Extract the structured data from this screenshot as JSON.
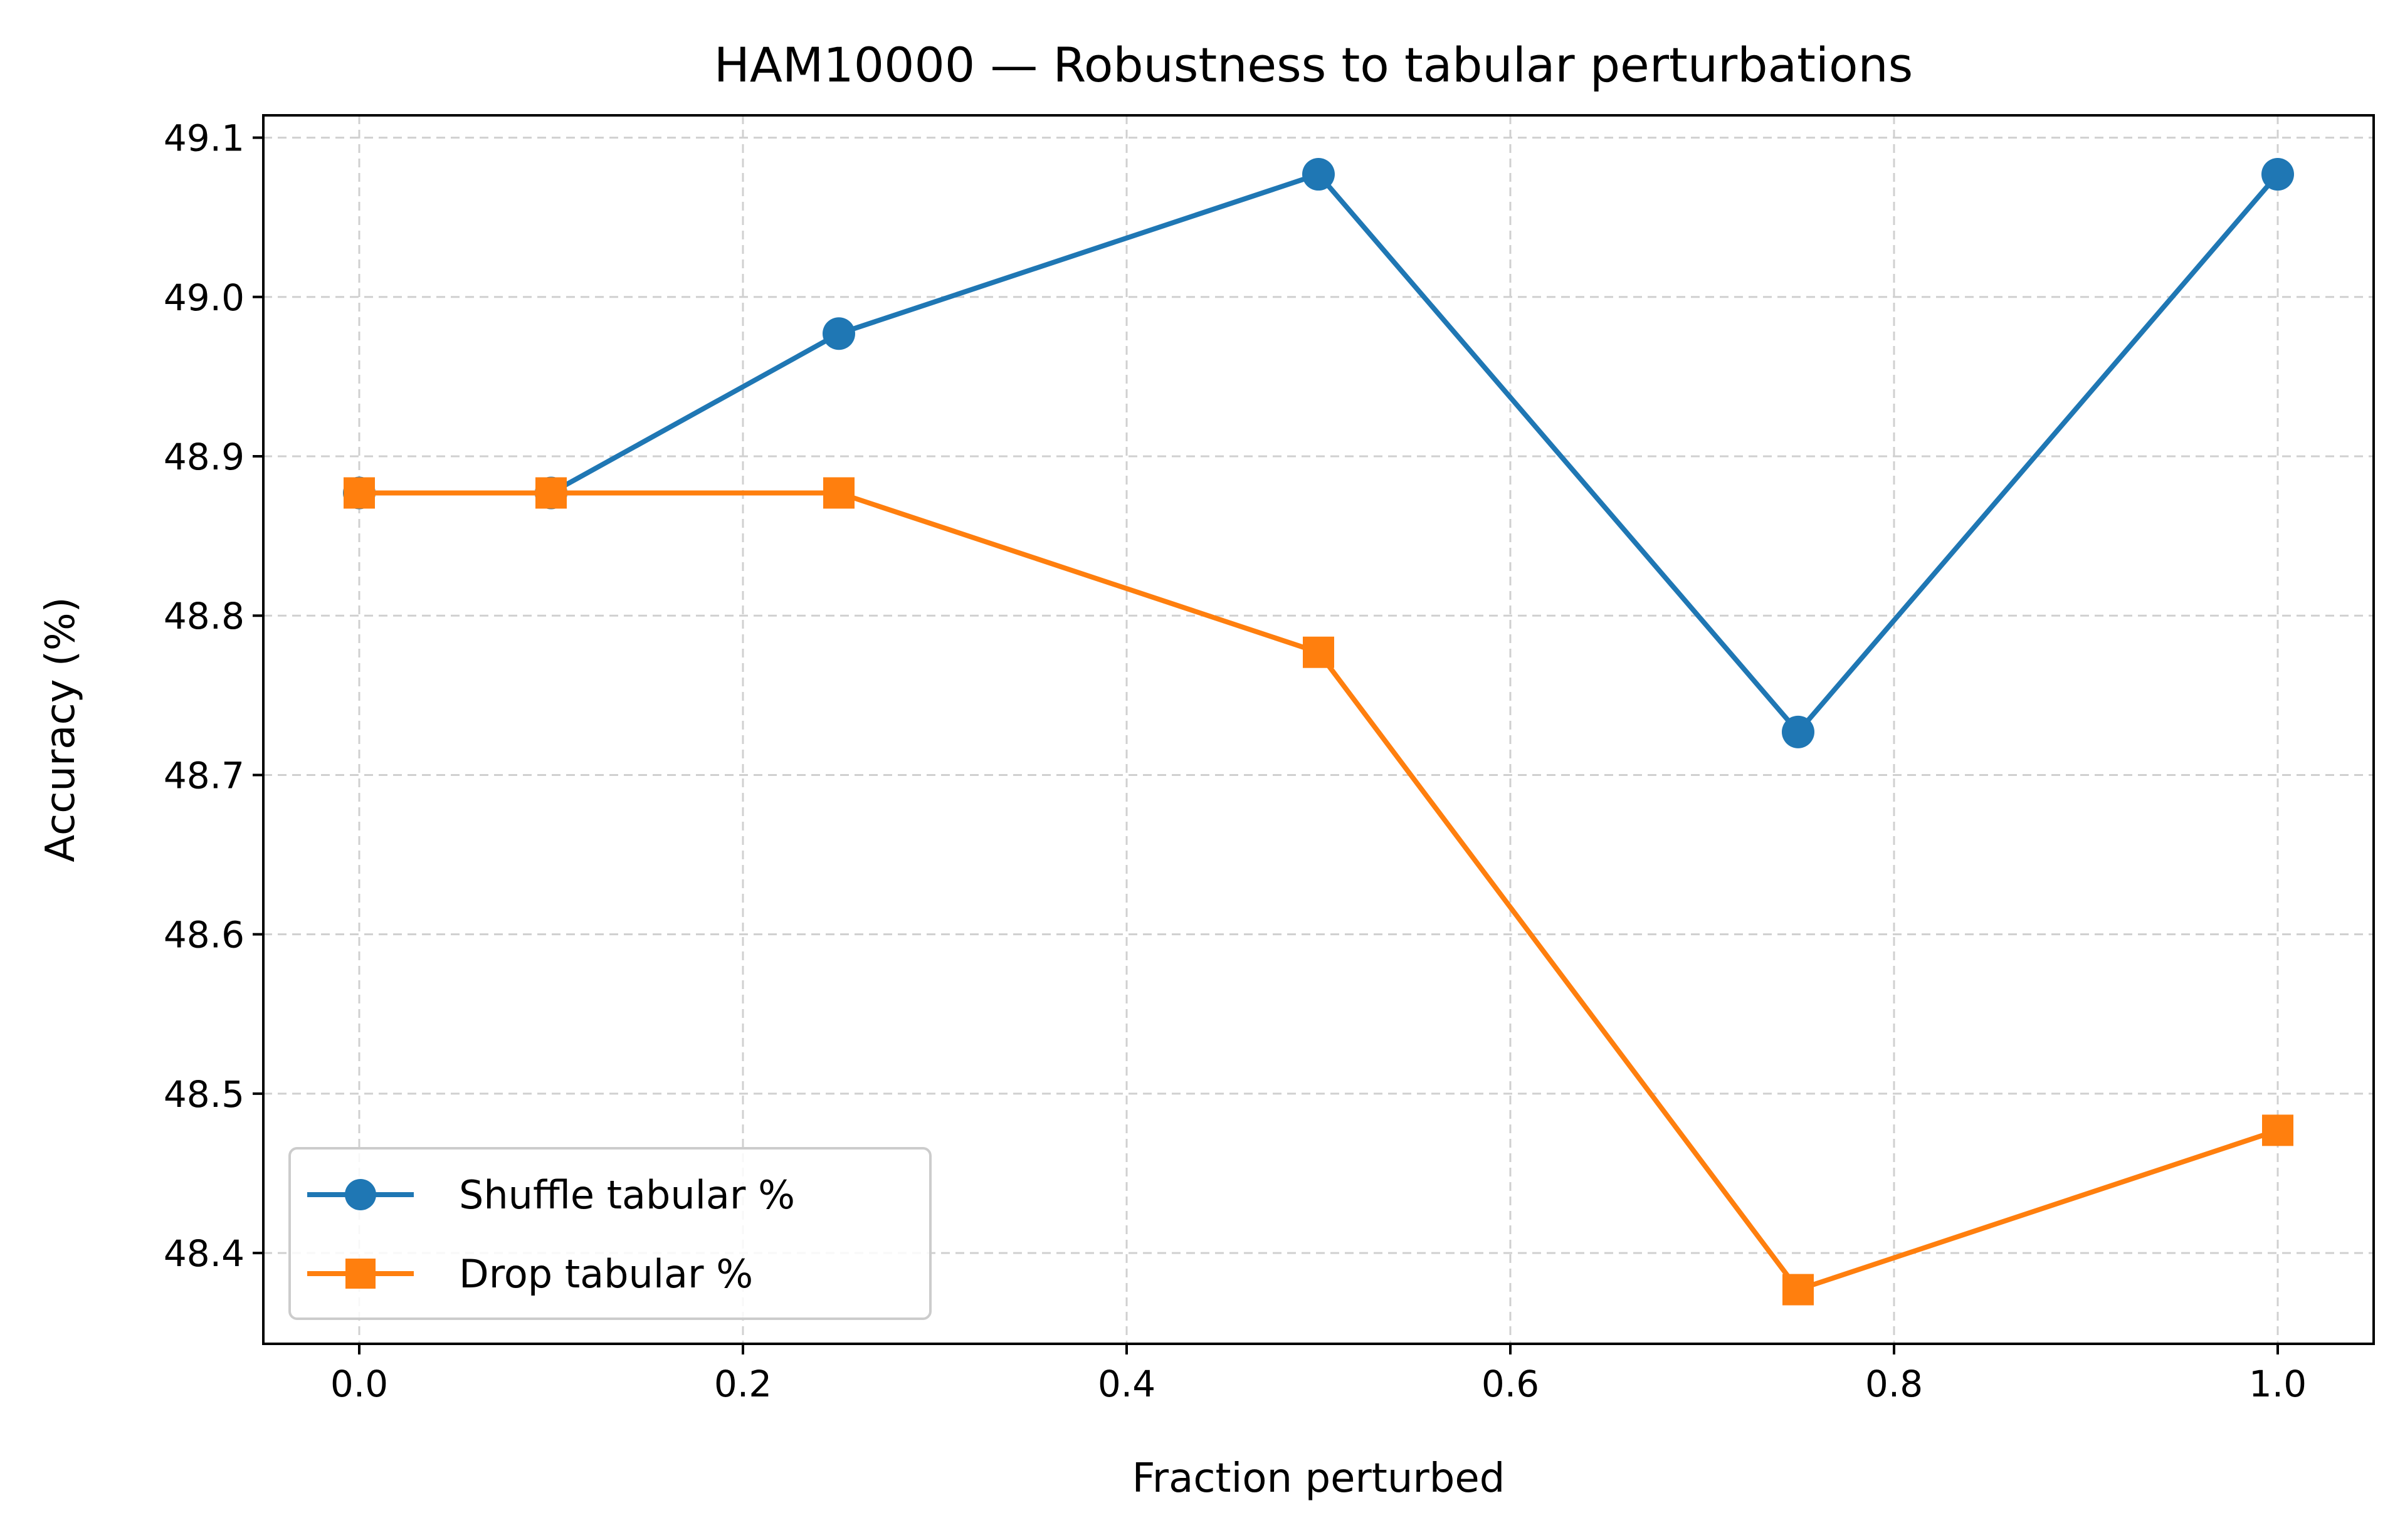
{
  "chart_data": {
    "type": "line",
    "title": "HAM10000 — Robustness to tabular perturbations",
    "xlabel": "Fraction perturbed",
    "ylabel": "Accuracy (%)",
    "xlim": [
      -0.05,
      1.05
    ],
    "ylim": [
      48.343,
      49.114
    ],
    "xticks": [
      0.0,
      0.2,
      0.4,
      0.6,
      0.8,
      1.0
    ],
    "xtick_labels": [
      "0.0",
      "0.2",
      "0.4",
      "0.6",
      "0.8",
      "1.0"
    ],
    "yticks": [
      48.4,
      48.5,
      48.6,
      48.7,
      48.8,
      48.9,
      49.0,
      49.1
    ],
    "ytick_labels": [
      "48.4",
      "48.5",
      "48.6",
      "48.7",
      "48.8",
      "48.9",
      "49.0",
      "49.1"
    ],
    "grid": true,
    "legend_position": "lower-left",
    "series": [
      {
        "name": "Shuffle tabular %",
        "color": "#1f77b4",
        "marker": "circle",
        "x": [
          0.0,
          0.1,
          0.25,
          0.5,
          0.75,
          1.0
        ],
        "y": [
          48.877,
          48.877,
          48.977,
          49.077,
          48.727,
          49.077
        ]
      },
      {
        "name": "Drop tabular %",
        "color": "#ff7f0e",
        "marker": "square",
        "x": [
          0.0,
          0.1,
          0.25,
          0.5,
          0.75,
          1.0
        ],
        "y": [
          48.877,
          48.877,
          48.877,
          48.777,
          48.377,
          48.477
        ]
      }
    ]
  }
}
